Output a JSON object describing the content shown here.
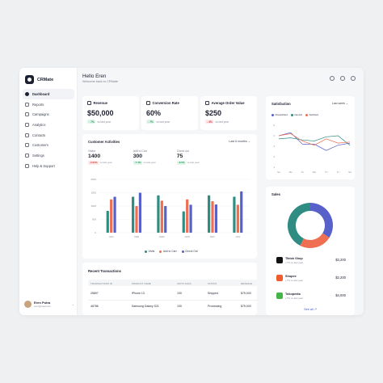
{
  "app": {
    "name": "CRMate"
  },
  "sidebar": {
    "items": [
      {
        "label": "Dashboard",
        "active": true,
        "icon": "dashboard-icon"
      },
      {
        "label": "Reports",
        "icon": "reports-icon"
      },
      {
        "label": "Campaigns",
        "icon": "campaigns-icon"
      },
      {
        "label": "Analytics",
        "icon": "analytics-icon"
      },
      {
        "label": "Contacts",
        "icon": "contacts-icon"
      },
      {
        "label": "Customers",
        "icon": "customers-icon"
      },
      {
        "label": "Settings",
        "icon": "settings-icon"
      },
      {
        "label": "Help & Support",
        "icon": "help-icon"
      }
    ],
    "user": {
      "name": "Eren Putra",
      "email": "eren@mail.com"
    }
  },
  "header": {
    "title": "Hello Eren",
    "subtitle": "Welcome back to CRMate"
  },
  "kpis": [
    {
      "title": "Revenue",
      "value": "$50,000",
      "delta": "7%",
      "direction": "up",
      "note": "vs last year",
      "icon": "revenue-icon"
    },
    {
      "title": "Conversion Rate",
      "value": "60%",
      "delta": "7%",
      "direction": "up",
      "note": "vs last year",
      "icon": "conversion-icon"
    },
    {
      "title": "Average Order Value",
      "value": "$250",
      "delta": "4%",
      "direction": "down",
      "note": "vs last year",
      "icon": "cart-icon"
    }
  ],
  "activities": {
    "title": "Customer Activities",
    "filter": "Last 6 months",
    "stats": [
      {
        "label": "Visitor",
        "value": "1400",
        "delta": "0.63%",
        "direction": "down",
        "note": "vs last year"
      },
      {
        "label": "Add to Cart",
        "value": "300",
        "delta": "7.4%",
        "direction": "up",
        "note": "vs last year"
      },
      {
        "label": "Check out",
        "value": "75",
        "delta": "9.0%",
        "direction": "up",
        "note": "vs last year"
      }
    ],
    "legend": [
      "Visits",
      "Add to Cart",
      "Check Out"
    ]
  },
  "satisfaction": {
    "title": "Satisfaction",
    "filter": "Last week",
    "legend": [
      "Dissatisfied",
      "Neutral",
      "Satisfied"
    ]
  },
  "sales": {
    "title": "Sales",
    "items": [
      {
        "name": "Tiktok Shop",
        "sub": "+7% vs last year",
        "value": "$3,200",
        "logo": "tiktok-icon",
        "color": "#111111"
      },
      {
        "name": "Shopee",
        "sub": "+7% vs last year",
        "value": "$2,200",
        "logo": "shopee-icon",
        "color": "#f05b2c"
      },
      {
        "name": "Tokopedia",
        "sub": "+7% vs last year",
        "value": "$4,000",
        "logo": "tokopedia-icon",
        "color": "#43b549"
      }
    ],
    "see_all": "See all"
  },
  "transactions": {
    "title": "Recent Transactions",
    "columns": [
      "TRANSACTIONS ID",
      "PRODUCT NAME",
      "UNITS SOLD",
      "STATUS",
      "REVENUE"
    ],
    "rows": [
      [
        "25897",
        "iPhone 13",
        "100",
        "Shipped",
        "$75,000"
      ],
      [
        "46786",
        "Samsung Galaxy S21",
        "100",
        "Processing",
        "$75,000"
      ]
    ]
  },
  "colors": {
    "visits": "#2f8c82",
    "add_to_cart": "#ef6f52",
    "check_out": "#5860c9",
    "accent": "#3b56d9"
  },
  "chart_data": [
    {
      "type": "bar",
      "title": "Customer Activities",
      "categories": [
        "JAN",
        "FEB",
        "MAR",
        "APR",
        "MAY",
        "JUN"
      ],
      "ylim": [
        0,
        2000
      ],
      "yticks": [
        "2000",
        "1500",
        "1000",
        "500",
        "0"
      ],
      "series": [
        {
          "name": "Visits",
          "values": [
            820,
            1350,
            1400,
            800,
            1400,
            1350
          ]
        },
        {
          "name": "Add to Cart",
          "values": [
            1250,
            1000,
            1200,
            1250,
            1180,
            1050
          ]
        },
        {
          "name": "Check Out",
          "values": [
            1350,
            1500,
            1000,
            1050,
            1060,
            1550
          ]
        }
      ],
      "legend_position": "bottom"
    },
    {
      "type": "line",
      "title": "Satisfaction",
      "categories": [
        "Su",
        "Mo",
        "Tu",
        "We",
        "Th",
        "Fr",
        "Sa"
      ],
      "ylim": [
        1,
        5
      ],
      "yticks": [
        "5",
        "4",
        "3",
        "2",
        "1"
      ],
      "series": [
        {
          "name": "Dissatisfied",
          "values": [
            4,
            4.3,
            3.2,
            3.2,
            2.6,
            3.1,
            3.3
          ]
        },
        {
          "name": "Neutral",
          "values": [
            3.7,
            3.8,
            3.6,
            3.5,
            3.9,
            4.0,
            3.1
          ]
        },
        {
          "name": "Satisfied",
          "values": [
            4.0,
            4.2,
            3.5,
            3.1,
            3.7,
            3.3,
            3.4
          ]
        }
      ],
      "legend_position": "top"
    },
    {
      "type": "pie",
      "title": "Sales",
      "categories": [
        "Tiktok Shop",
        "Shopee",
        "Tokopedia"
      ],
      "values": [
        3200,
        2200,
        4000
      ],
      "donut": true
    }
  ]
}
